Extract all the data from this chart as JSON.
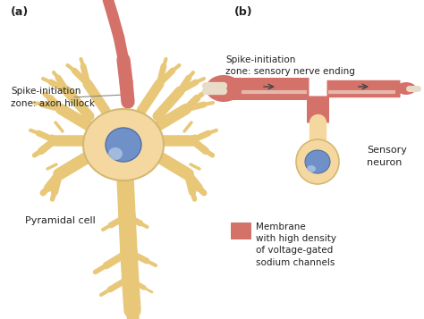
{
  "bg_color": "#ffffff",
  "soma_color": "#f5d8a0",
  "soma_edge": "#d4b870",
  "nucleus_color": "#7090c8",
  "nucleus_edge": "#5070a8",
  "axon_color": "#d4726a",
  "dendrite_color": "#e8c878",
  "dendrite_dark": "#d4b060",
  "label_pyramidal": "Pyramidal cell",
  "label_spike_a": "Spike-initiation\nzone: axon hillock",
  "label_a": "(a)",
  "label_membrane": "Membrane\nwith high density\nof voltage-gated\nsodium channels",
  "label_sensory": "Sensory\nneuron",
  "label_spike_b": "Spike-initiation\nzone: sensory nerve ending",
  "label_b": "(b)"
}
